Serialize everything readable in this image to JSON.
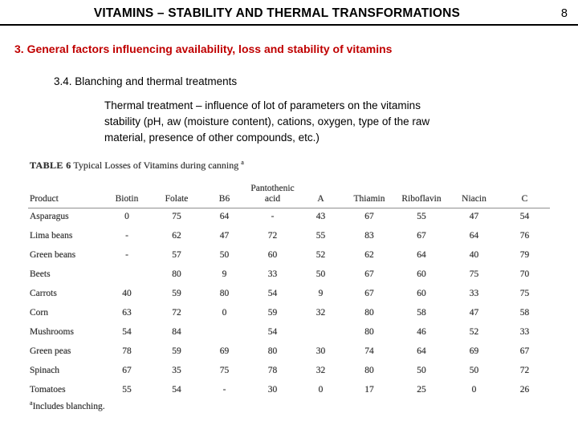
{
  "slide": {
    "title": "VITAMINS – STABILITY AND THERMAL TRANSFORMATIONS",
    "page_number": "8",
    "heading": "3. General factors influencing availability, loss and stability of vitamins",
    "subheading": "3.4. Blanching and thermal treatments",
    "body_lines": [
      "Thermal treatment – influence of lot of parameters on the vitamins",
      "stability (pH, aw (moisture content), cations, oxygen, type of the raw",
      "material, presence of other compounds, etc.)"
    ]
  },
  "table": {
    "title_prefix": "TABLE 6",
    "title_text": " Typical Losses of Vitamins during canning ",
    "title_superscript": "a",
    "header_top": "Pantothenic",
    "columns": [
      "Product",
      "Biotin",
      "Folate",
      "B6",
      "acid",
      "A",
      "Thiamin",
      "Riboflavin",
      "Niacin",
      "C"
    ],
    "rows": [
      {
        "product": "Asparagus",
        "values": [
          "0",
          "75",
          "64",
          "-",
          "43",
          "67",
          "55",
          "47",
          "54"
        ]
      },
      {
        "product": "Lima beans",
        "values": [
          "-",
          "62",
          "47",
          "72",
          "55",
          "83",
          "67",
          "64",
          "76"
        ]
      },
      {
        "product": "Green beans",
        "values": [
          "-",
          "57",
          "50",
          "60",
          "52",
          "62",
          "64",
          "40",
          "79"
        ]
      },
      {
        "product": "Beets",
        "values": [
          "",
          "80",
          "9",
          "33",
          "50",
          "67",
          "60",
          "75",
          "70"
        ]
      },
      {
        "product": "Carrots",
        "values": [
          "40",
          "59",
          "80",
          "54",
          "9",
          "67",
          "60",
          "33",
          "75"
        ]
      },
      {
        "product": "Corn",
        "values": [
          "63",
          "72",
          "0",
          "59",
          "32",
          "80",
          "58",
          "47",
          "58"
        ]
      },
      {
        "product": "Mushrooms",
        "values": [
          "54",
          "84",
          "",
          "54",
          "",
          "80",
          "46",
          "52",
          "33"
        ]
      },
      {
        "product": "Green peas",
        "values": [
          "78",
          "59",
          "69",
          "80",
          "30",
          "74",
          "64",
          "69",
          "67"
        ]
      },
      {
        "product": "Spinach",
        "values": [
          "67",
          "35",
          "75",
          "78",
          "32",
          "80",
          "50",
          "50",
          "72"
        ]
      },
      {
        "product": "Tomatoes",
        "values": [
          "55",
          "54",
          "-",
          "30",
          "0",
          "17",
          "25",
          "0",
          "26"
        ]
      }
    ],
    "footnote_superscript": "a",
    "footnote": "Includes blanching."
  },
  "colors": {
    "heading_red": "#c00000",
    "rule_black": "#000000",
    "table_ink": "#343434"
  }
}
